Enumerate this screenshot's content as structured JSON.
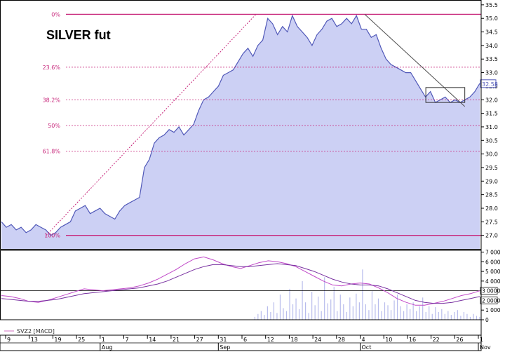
{
  "chart_data": [
    {
      "type": "area",
      "title": "SILVER fut",
      "ylim": [
        26.5,
        35.6
      ],
      "y_ticks": [
        27.0,
        27.5,
        28.0,
        28.5,
        29.0,
        29.5,
        30.0,
        30.5,
        31.0,
        31.5,
        32.0,
        32.5,
        33.0,
        33.5,
        34.0,
        34.5,
        35.0,
        35.5
      ],
      "y_tick_labels": [
        "27.0",
        "27.5",
        "28.0",
        "28.5",
        "29.0",
        "29.5",
        "30.0",
        "30.5",
        "31.0",
        "31.5",
        "32.0",
        "32.5",
        "33.0",
        "33.5",
        "34.0",
        "34.5",
        "35.0",
        "35.5"
      ],
      "last_price_label": "32.58",
      "x_day_labels": [
        "9",
        "13",
        "19",
        "25",
        "1",
        "7",
        "14",
        "21",
        "27",
        "31",
        "6",
        "12",
        "18",
        "24",
        "28",
        "4",
        "10",
        "16",
        "22",
        "26",
        "1"
      ],
      "x_month_labels": [
        "Aug",
        "Sep",
        "Oct",
        "Nov"
      ],
      "series": [
        {
          "name": "",
          "values": [
            27.5,
            27.3,
            27.4,
            27.2,
            27.3,
            27.1,
            27.2,
            27.4,
            27.3,
            27.2,
            27.0,
            27.1,
            27.3,
            27.4,
            27.5,
            27.9,
            28.0,
            28.1,
            27.8,
            27.9,
            28.0,
            27.8,
            27.7,
            27.6,
            27.9,
            28.1,
            28.2,
            28.3,
            28.4,
            29.5,
            29.8,
            30.4,
            30.6,
            30.7,
            30.9,
            30.8,
            31.0,
            30.7,
            30.9,
            31.1,
            31.6,
            32.0,
            32.1,
            32.3,
            32.5,
            32.9,
            33.0,
            33.1,
            33.4,
            33.7,
            33.9,
            33.6,
            34.0,
            34.2,
            35.0,
            34.8,
            34.4,
            34.7,
            34.5,
            35.1,
            34.7,
            34.5,
            34.3,
            34.0,
            34.4,
            34.6,
            34.9,
            35.0,
            34.7,
            34.8,
            35.0,
            34.8,
            35.1,
            34.6,
            34.6,
            34.3,
            34.4,
            33.9,
            33.5,
            33.3,
            33.2,
            33.1,
            33.0,
            33.0,
            32.7,
            32.4,
            32.1,
            32.3,
            31.9,
            32.0,
            32.1,
            31.9,
            32.0,
            31.9,
            32.0,
            32.1,
            32.3,
            32.6
          ]
        }
      ],
      "fibonacci_levels": [
        {
          "label": "0%",
          "value": 35.15
        },
        {
          "label": "23.6%",
          "value": 33.2
        },
        {
          "label": "38.2%",
          "value": 32.0
        },
        {
          "label": "50%",
          "value": 31.05
        },
        {
          "label": "61.8%",
          "value": 30.1
        },
        {
          "label": "100%",
          "value": 27.0
        }
      ],
      "trendlines": [
        {
          "from": [
            9.6,
            27.0
          ],
          "to": [
            53.2,
            35.15
          ],
          "style": "dashed"
        },
        {
          "from": [
            75.8,
            35.15
          ],
          "to": [
            96.6,
            31.75
          ],
          "style": "solid"
        }
      ],
      "channel_box": {
        "x": [
          88.5,
          96.6
        ],
        "y": [
          31.9,
          32.45
        ]
      }
    },
    {
      "type": "line",
      "legend": "SVZ2 [MACD]",
      "ylim": [
        0,
        7000
      ],
      "y_ticks": [
        0,
        1000,
        2000,
        3000,
        4000,
        5000,
        6000,
        7000
      ],
      "y_tick_labels": [
        "0",
        "1 000",
        "2 000",
        "3 000",
        "4 000",
        "5 000",
        "6 000",
        "7 000"
      ],
      "reference_line": 3000,
      "value_boxes": [
        "2 000",
        "3 000"
      ],
      "series": [
        {
          "name": "",
          "values": [
            2500,
            2400,
            2200,
            1900,
            1800,
            2000,
            2300,
            2600,
            2900,
            3200,
            3100,
            3000,
            3100,
            3200,
            3300,
            3500,
            3800,
            4200,
            4700,
            5200,
            5800,
            6300,
            6500,
            6200,
            5800,
            5500,
            5300,
            5600,
            5900,
            6100,
            6000,
            5800,
            5500,
            5000,
            4500,
            4000,
            3600,
            3500,
            3700,
            3800,
            3700,
            3300,
            2800,
            2200,
            1800,
            1500,
            1500,
            1700,
            1900,
            2200,
            2500,
            2700,
            3000
          ]
        },
        {
          "name": "",
          "values": [
            2200,
            2100,
            2000,
            1900,
            1900,
            2000,
            2100,
            2300,
            2500,
            2700,
            2800,
            2900,
            3000,
            3100,
            3200,
            3300,
            3500,
            3700,
            4000,
            4400,
            4800,
            5200,
            5500,
            5700,
            5700,
            5600,
            5500,
            5500,
            5600,
            5700,
            5800,
            5700,
            5600,
            5300,
            5000,
            4600,
            4200,
            3900,
            3700,
            3600,
            3600,
            3500,
            3200,
            2800,
            2400,
            2000,
            1800,
            1700,
            1700,
            1800,
            2000,
            2200,
            2400
          ]
        }
      ],
      "volume": [
        0,
        0,
        0,
        0,
        0,
        0,
        0,
        0,
        0,
        0,
        0,
        0,
        0,
        0,
        0,
        0,
        0,
        0,
        0,
        0,
        0,
        0,
        0,
        0,
        0,
        0,
        0,
        0,
        0,
        0,
        0,
        0,
        0,
        0,
        0,
        0,
        0,
        0,
        0,
        0,
        0,
        0,
        0,
        0,
        0,
        0,
        0,
        0,
        0,
        0,
        0,
        0,
        0,
        0,
        0,
        0,
        0,
        0,
        0,
        0,
        0,
        0,
        0,
        0,
        0,
        0,
        0,
        0,
        0,
        0,
        0,
        0,
        0,
        0,
        0,
        0,
        0,
        0,
        0,
        0,
        300,
        600,
        900,
        500,
        1400,
        800,
        1800,
        700,
        2600,
        1200,
        900,
        3200,
        1600,
        2200,
        1100,
        4000,
        1800,
        700,
        2900,
        1500,
        2400,
        900,
        4400,
        1700,
        2100,
        3400,
        900,
        2600,
        1600,
        800,
        2300,
        1400,
        2700,
        1800,
        5200,
        1600,
        1000,
        3000,
        1600,
        2200,
        900,
        1800,
        1500,
        1000,
        2000,
        2600,
        1400,
        900,
        1600,
        1100,
        1800,
        900,
        1400,
        2300,
        800,
        1400,
        600,
        1300,
        800,
        1100,
        600,
        900,
        500,
        800,
        1000,
        400,
        800,
        600,
        300,
        600,
        400,
        300
      ]
    }
  ],
  "legend": {
    "label": "SVZ2 [MACD]"
  }
}
